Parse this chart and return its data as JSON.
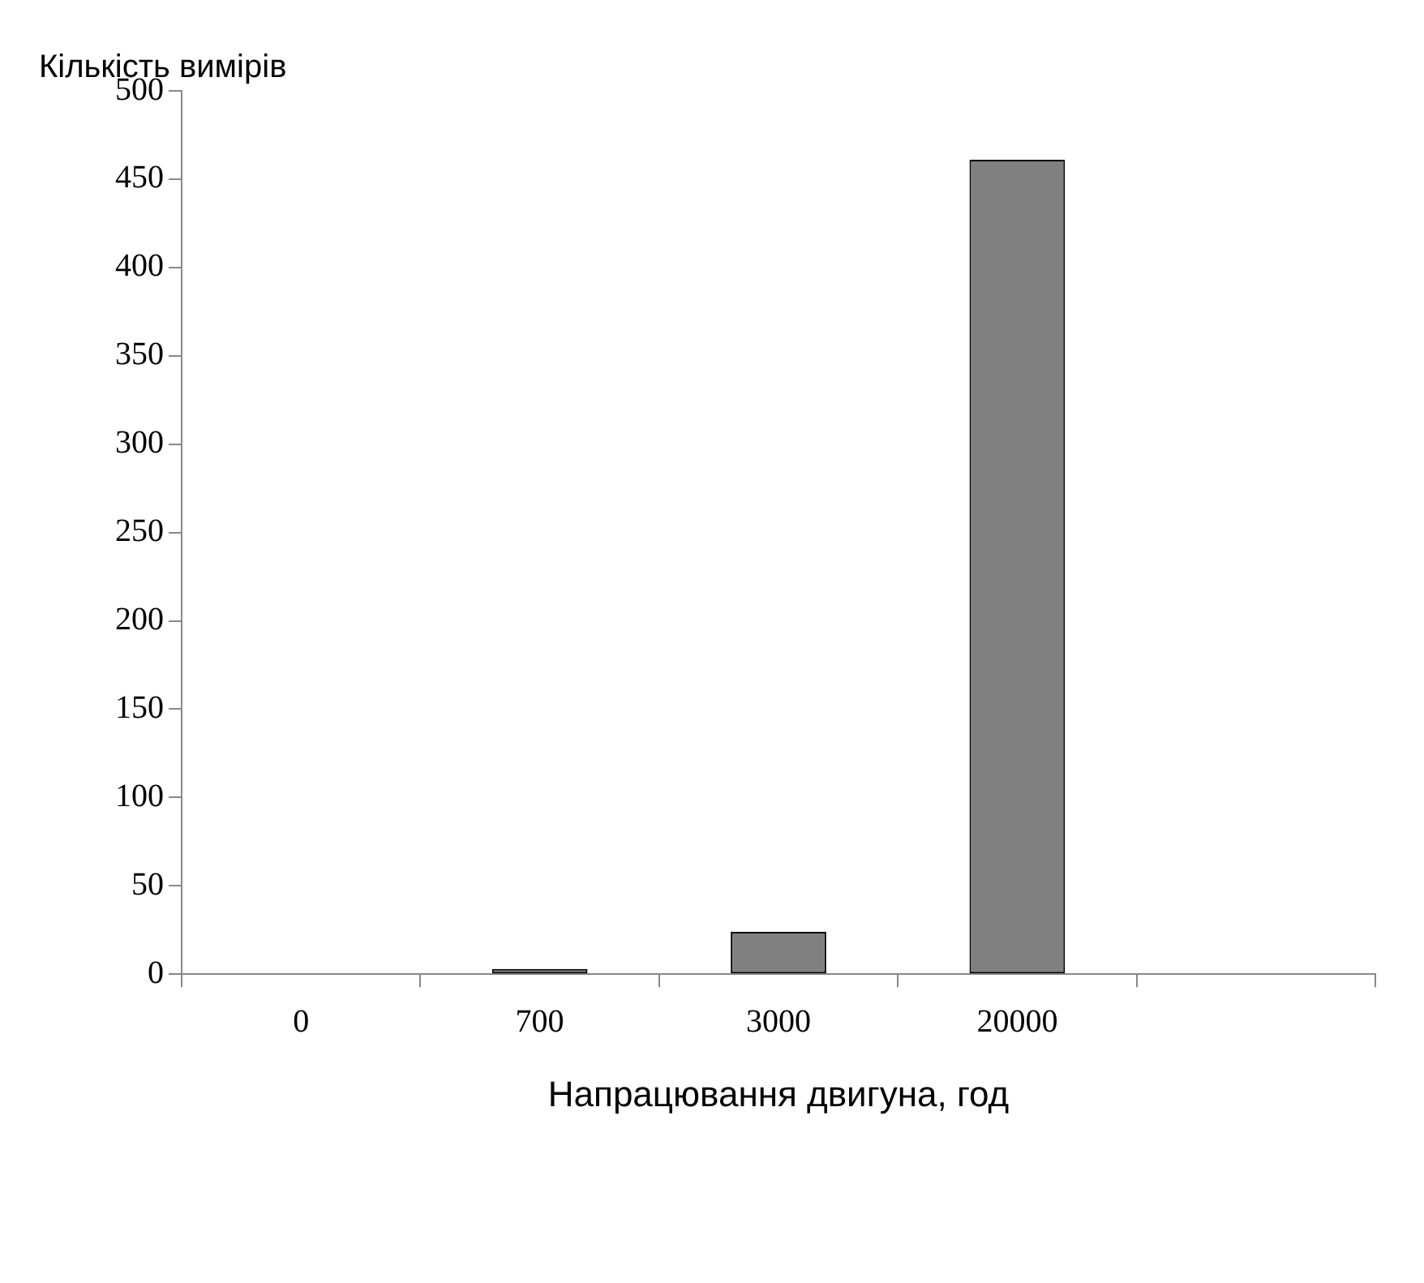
{
  "chart_data": {
    "type": "bar",
    "ylabel": "Кількість вимірів",
    "xlabel": "Напрацювання двигуна, год",
    "categories": [
      "0",
      "700",
      "3000",
      "20000",
      null
    ],
    "values": [
      0,
      3,
      24,
      461,
      null
    ],
    "color": "#808080",
    "ylim": [
      0,
      500
    ],
    "yticks": [
      0,
      50,
      100,
      150,
      200,
      250,
      300,
      350,
      400,
      450,
      500
    ],
    "grid": false,
    "legend": false
  }
}
